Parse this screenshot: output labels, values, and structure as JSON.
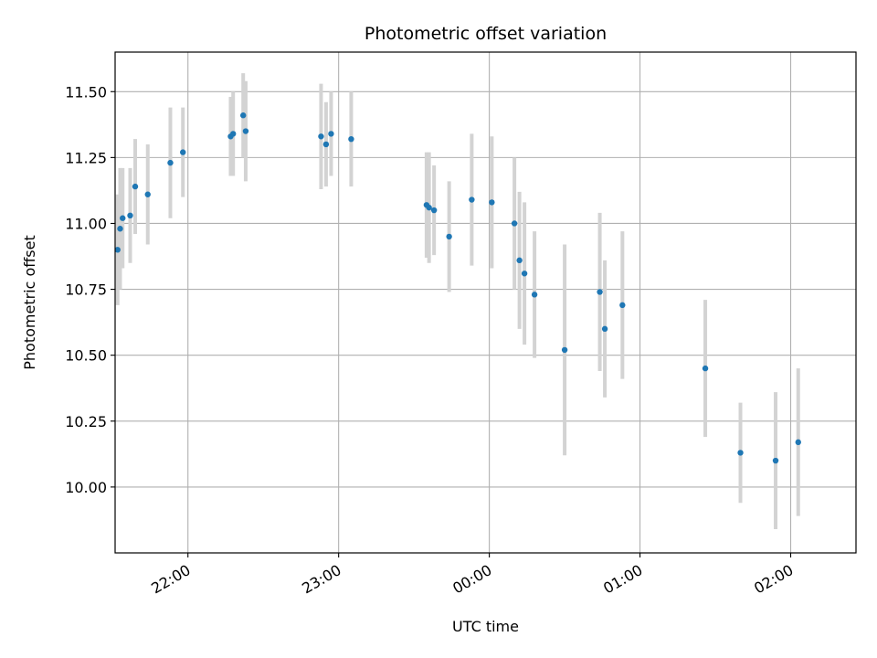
{
  "chart_data": {
    "type": "scatter",
    "title": "Photometric offset variation",
    "xlabel": "UTC time",
    "ylabel": "Photometric offset",
    "x_tick_labels": [
      "22:00",
      "23:00",
      "00:00",
      "01:00",
      "02:00"
    ],
    "x_tick_values": [
      "22:00",
      "23:00",
      "00:00",
      "01:00",
      "02:00"
    ],
    "y_tick_labels": [
      "10.00",
      "10.25",
      "10.50",
      "10.75",
      "11.00",
      "11.25",
      "11.50"
    ],
    "y_tick_values": [
      10.0,
      10.25,
      10.5,
      10.75,
      11.0,
      11.25,
      11.5
    ],
    "xlim": [
      "21:31",
      "02:26"
    ],
    "ylim": [
      9.75,
      11.65
    ],
    "grid": true,
    "colors": {
      "point": "#1f77b4",
      "errorbar": "#d3d3d3",
      "grid": "#b0b0b0"
    },
    "points": [
      {
        "time": "21:32",
        "y": 10.9,
        "err": 0.21
      },
      {
        "time": "21:33",
        "y": 10.98,
        "err": 0.23
      },
      {
        "time": "21:34",
        "y": 11.02,
        "err": 0.19
      },
      {
        "time": "21:37",
        "y": 11.03,
        "err": 0.18
      },
      {
        "time": "21:39",
        "y": 11.14,
        "err": 0.18
      },
      {
        "time": "21:44",
        "y": 11.11,
        "err": 0.19
      },
      {
        "time": "21:53",
        "y": 11.23,
        "err": 0.21
      },
      {
        "time": "21:58",
        "y": 11.27,
        "err": 0.17
      },
      {
        "time": "22:17",
        "y": 11.33,
        "err": 0.15
      },
      {
        "time": "22:18",
        "y": 11.34,
        "err": 0.16
      },
      {
        "time": "22:22",
        "y": 11.41,
        "err": 0.16
      },
      {
        "time": "22:23",
        "y": 11.35,
        "err": 0.19
      },
      {
        "time": "22:53",
        "y": 11.33,
        "err": 0.2
      },
      {
        "time": "22:55",
        "y": 11.3,
        "err": 0.16
      },
      {
        "time": "22:57",
        "y": 11.34,
        "err": 0.16
      },
      {
        "time": "23:05",
        "y": 11.32,
        "err": 0.18
      },
      {
        "time": "23:35",
        "y": 11.07,
        "err": 0.2
      },
      {
        "time": "23:36",
        "y": 11.06,
        "err": 0.21
      },
      {
        "time": "23:38",
        "y": 11.05,
        "err": 0.17
      },
      {
        "time": "23:44",
        "y": 10.95,
        "err": 0.21
      },
      {
        "time": "23:53",
        "y": 11.09,
        "err": 0.25
      },
      {
        "time": "00:01",
        "y": 11.08,
        "err": 0.25
      },
      {
        "time": "00:10",
        "y": 11.0,
        "err": 0.25
      },
      {
        "time": "00:12",
        "y": 10.86,
        "err": 0.26
      },
      {
        "time": "00:14",
        "y": 10.81,
        "err": 0.27
      },
      {
        "time": "00:18",
        "y": 10.73,
        "err": 0.24
      },
      {
        "time": "00:30",
        "y": 10.52,
        "err": 0.4
      },
      {
        "time": "00:44",
        "y": 10.74,
        "err": 0.3
      },
      {
        "time": "00:46",
        "y": 10.6,
        "err": 0.26
      },
      {
        "time": "00:53",
        "y": 10.69,
        "err": 0.28
      },
      {
        "time": "01:26",
        "y": 10.45,
        "err": 0.26
      },
      {
        "time": "01:40",
        "y": 10.13,
        "err": 0.19
      },
      {
        "time": "01:54",
        "y": 10.1,
        "err": 0.26
      },
      {
        "time": "02:03",
        "y": 10.17,
        "err": 0.28
      }
    ]
  }
}
